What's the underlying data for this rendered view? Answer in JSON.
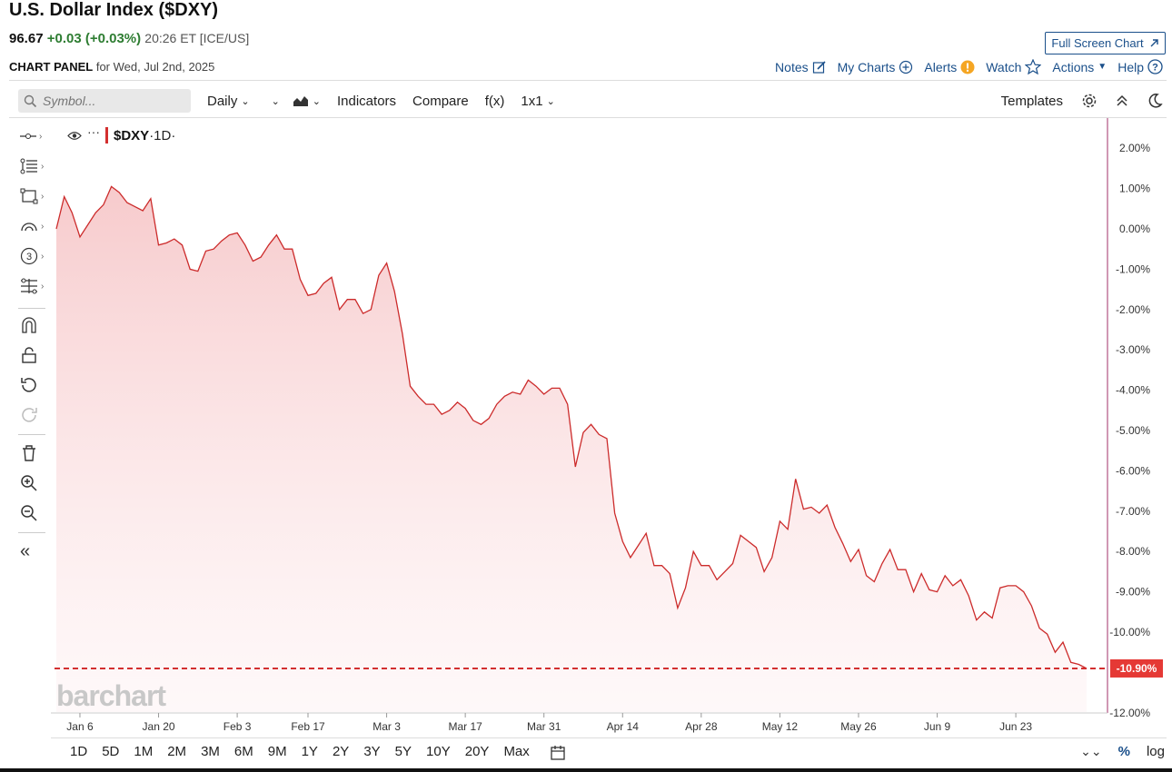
{
  "header": {
    "title": "U.S. Dollar Index ($DXY)",
    "last": "96.67",
    "change": "+0.03 (+0.03%)",
    "meta": "20:26 ET [ICE/US]",
    "fullscreen_label": "Full Screen Chart",
    "panel_label": "CHART PANEL",
    "panel_date": "for Wed, Jul 2nd, 2025"
  },
  "top_links": {
    "notes": "Notes",
    "my_charts": "My Charts",
    "alerts": "Alerts",
    "watch": "Watch",
    "actions": "Actions",
    "help": "Help"
  },
  "toolbar": {
    "search_placeholder": "Symbol...",
    "interval": "Daily",
    "indicators": "Indicators",
    "compare": "Compare",
    "fx": "f(x)",
    "layout": "1x1",
    "templates": "Templates"
  },
  "legend": {
    "symbol": "$DXY",
    "interval": "·1D·"
  },
  "watermark": "barchart",
  "ranges": [
    "1D",
    "5D",
    "1M",
    "2M",
    "3M",
    "6M",
    "9M",
    "1Y",
    "2Y",
    "3Y",
    "5Y",
    "10Y",
    "20Y",
    "Max"
  ],
  "bottom_right": {
    "pct": "%",
    "log": "log"
  },
  "colors": {
    "line": "#cc2b2b",
    "accent": "#1a4f8a",
    "positive": "#2e7d32",
    "last_label_bg": "#e53935"
  },
  "icons": [
    "search-icon",
    "eye-icon",
    "calendar-icon",
    "gear-icon",
    "moon-icon",
    "star-icon",
    "help-icon",
    "alert-icon",
    "plus-circle-icon",
    "edit-icon",
    "expand-icon"
  ],
  "chart_data": {
    "type": "area",
    "y_unit": "%",
    "ylim": [
      -12,
      2.5
    ],
    "y_ticks": [
      "2.00%",
      "1.00%",
      "0.00%",
      "-1.00%",
      "-2.00%",
      "-3.00%",
      "-4.00%",
      "-5.00%",
      "-6.00%",
      "-7.00%",
      "-8.00%",
      "-9.00%",
      "-10.00%",
      "-12.00%"
    ],
    "y_tick_values": [
      2,
      1,
      0,
      -1,
      -2,
      -3,
      -4,
      -5,
      -6,
      -7,
      -8,
      -9,
      -10,
      -12
    ],
    "x_ticks": [
      "Jan 6",
      "Jan 20",
      "Feb 3",
      "Feb 17",
      "Mar 3",
      "Mar 17",
      "Mar 31",
      "Apr 14",
      "Apr 28",
      "May 12",
      "May 26",
      "Jun 9",
      "Jun 23"
    ],
    "x_tick_index": [
      3,
      13,
      23,
      32,
      42,
      52,
      62,
      72,
      82,
      92,
      102,
      112,
      122
    ],
    "last_value_label": "-10.90%",
    "last_value": -10.9,
    "values": [
      0.0,
      0.8,
      0.4,
      -0.2,
      0.1,
      0.4,
      0.6,
      1.05,
      0.9,
      0.65,
      0.55,
      0.45,
      0.75,
      -0.4,
      -0.35,
      -0.25,
      -0.4,
      -1.0,
      -1.05,
      -0.55,
      -0.5,
      -0.3,
      -0.15,
      -0.1,
      -0.4,
      -0.8,
      -0.7,
      -0.4,
      -0.15,
      -0.5,
      -0.5,
      -1.25,
      -1.65,
      -1.6,
      -1.35,
      -1.2,
      -2.0,
      -1.75,
      -1.75,
      -2.1,
      -2.0,
      -1.15,
      -0.85,
      -1.55,
      -2.6,
      -3.9,
      -4.15,
      -4.35,
      -4.35,
      -4.6,
      -4.5,
      -4.3,
      -4.45,
      -4.75,
      -4.85,
      -4.7,
      -4.35,
      -4.15,
      -4.05,
      -4.1,
      -3.75,
      -3.9,
      -4.1,
      -3.95,
      -3.95,
      -4.35,
      -5.9,
      -5.05,
      -4.85,
      -5.1,
      -5.2,
      -7.05,
      -7.75,
      -8.15,
      -7.85,
      -7.55,
      -8.35,
      -8.35,
      -8.55,
      -9.4,
      -8.9,
      -8.0,
      -8.35,
      -8.35,
      -8.7,
      -8.5,
      -8.3,
      -7.6,
      -7.75,
      -7.9,
      -8.5,
      -8.15,
      -7.25,
      -7.45,
      -6.2,
      -6.95,
      -6.9,
      -7.05,
      -6.85,
      -7.4,
      -7.8,
      -8.25,
      -7.95,
      -8.6,
      -8.75,
      -8.3,
      -7.95,
      -8.45,
      -8.45,
      -9.0,
      -8.55,
      -8.95,
      -9.0,
      -8.6,
      -8.85,
      -8.7,
      -9.1,
      -9.7,
      -9.5,
      -9.65,
      -8.9,
      -8.85,
      -8.85,
      -9.0,
      -9.35,
      -9.9,
      -10.05,
      -10.5,
      -10.25,
      -10.75,
      -10.8,
      -10.9
    ]
  }
}
